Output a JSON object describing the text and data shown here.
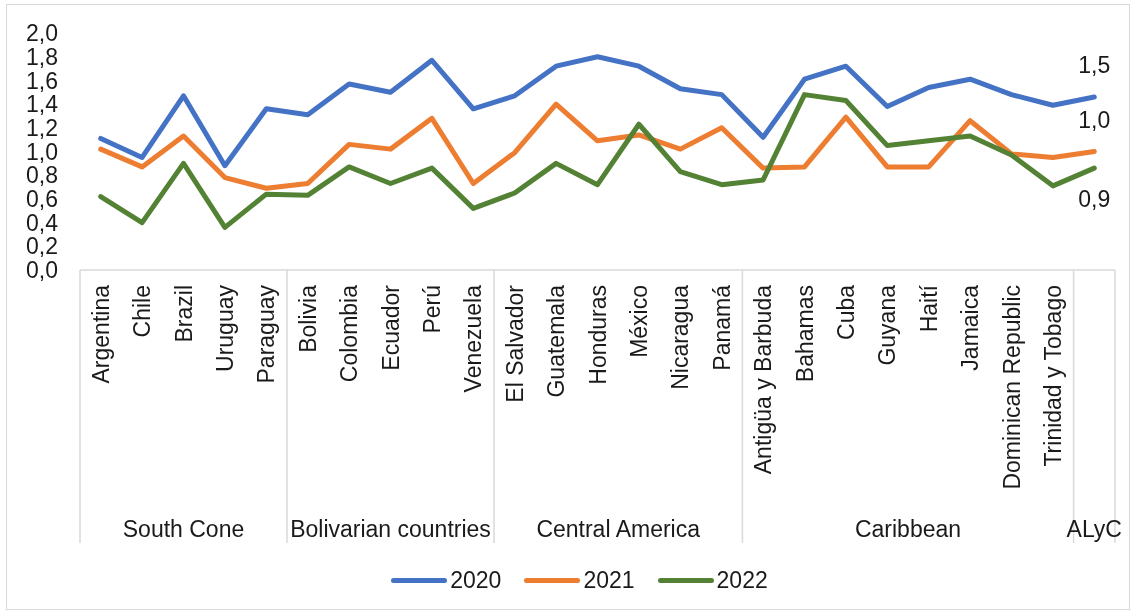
{
  "chart_data": {
    "type": "line",
    "categories": [
      "Argentina",
      "Chile",
      "Brazil",
      "Uruguay",
      "Paraguay",
      "Bolivia",
      "Colombia",
      "Ecuador",
      "Perú",
      "Venezuela",
      "El Salvador",
      "Guatemala",
      "Honduras",
      "México",
      "Nicaragua",
      "Panamá",
      "Antigüa y Barbuda",
      "Bahamas",
      "Cuba",
      "Guyana",
      "Haití",
      "Jamaica",
      "Dominican Republic",
      "Trinidad y Tobago",
      null
    ],
    "series": [
      {
        "name": "2020",
        "color": "#4472c4",
        "values": [
          1.11,
          0.95,
          1.47,
          0.88,
          1.36,
          1.31,
          1.57,
          1.5,
          1.77,
          1.36,
          1.47,
          1.72,
          1.8,
          1.72,
          1.53,
          1.48,
          1.12,
          1.61,
          1.72,
          1.38,
          1.54,
          1.61,
          1.48,
          1.39,
          1.46
        ],
        "value_labels": [
          null,
          null,
          null,
          null,
          null,
          null,
          null,
          null,
          null,
          null,
          null,
          null,
          null,
          null,
          null,
          null,
          null,
          null,
          null,
          null,
          null,
          null,
          null,
          null,
          "1,5"
        ]
      },
      {
        "name": "2021",
        "color": "#ed7d31",
        "values": [
          1.02,
          0.87,
          1.13,
          0.78,
          0.69,
          0.73,
          1.06,
          1.02,
          1.28,
          0.73,
          0.99,
          1.4,
          1.09,
          1.14,
          1.02,
          1.2,
          0.86,
          0.87,
          1.29,
          0.87,
          0.87,
          1.26,
          0.98,
          0.95,
          1.0
        ],
        "value_labels": [
          null,
          null,
          null,
          null,
          null,
          null,
          null,
          null,
          null,
          null,
          null,
          null,
          null,
          null,
          null,
          null,
          null,
          null,
          null,
          null,
          null,
          null,
          null,
          null,
          "1,0"
        ]
      },
      {
        "name": "2022",
        "color": "#548235",
        "values": [
          0.62,
          0.4,
          0.9,
          0.36,
          0.64,
          0.63,
          0.87,
          0.73,
          0.86,
          0.52,
          0.65,
          0.9,
          0.72,
          1.23,
          0.83,
          0.72,
          0.76,
          1.48,
          1.43,
          1.05,
          1.09,
          1.13,
          0.97,
          0.71,
          0.86
        ],
        "value_labels": [
          null,
          null,
          null,
          null,
          null,
          null,
          null,
          null,
          null,
          null,
          null,
          null,
          null,
          null,
          null,
          null,
          null,
          null,
          null,
          null,
          null,
          null,
          null,
          null,
          "0,9"
        ]
      }
    ],
    "ylim": [
      0,
      2
    ],
    "yticks": [
      {
        "value": 0,
        "label": "0,0"
      },
      {
        "value": 0.2,
        "label": "0,2"
      },
      {
        "value": 0.4,
        "label": "0,4"
      },
      {
        "value": 0.6,
        "label": "0,6"
      },
      {
        "value": 0.8,
        "label": "0,8"
      },
      {
        "value": 1,
        "label": "1,0"
      },
      {
        "value": 1.2,
        "label": "1,2"
      },
      {
        "value": 1.4,
        "label": "1,4"
      },
      {
        "value": 1.6,
        "label": "1,6"
      },
      {
        "value": 1.8,
        "label": "1,8"
      },
      {
        "value": 2,
        "label": "2,0"
      }
    ],
    "legend": "bottom",
    "annotations": [
      "South Cone",
      "Bolivarian countries",
      "Central America",
      "Caribbean",
      "ALyC"
    ]
  }
}
